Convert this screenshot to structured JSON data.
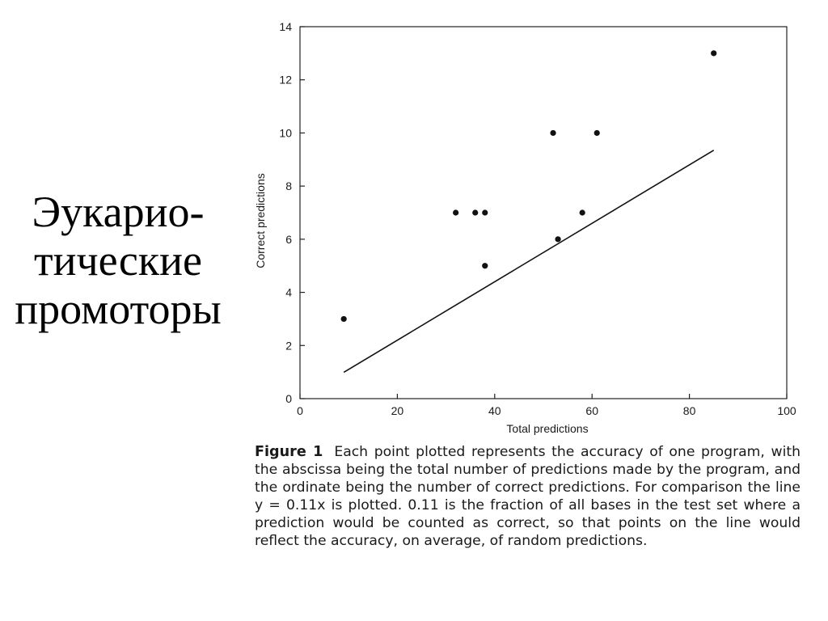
{
  "slide": {
    "title_lines": [
      "Эукарио-",
      "тические",
      "промоторы"
    ]
  },
  "figure": {
    "caption_label": "Figure 1",
    "caption_text": "Each point plotted represents the accuracy of one program, with the abscissa being the total number of predictions made by the program, and the ordinate being the number of correct predictions. For comparison the line y = 0.11x is plotted. 0.11 is the fraction of all bases in the test set where a prediction would be counted as correct, so that points on the line would reflect the accuracy, on average, of random predictions."
  },
  "chart_data": {
    "type": "scatter",
    "title": "",
    "xlabel": "Total predictions",
    "ylabel": "Correct predictions",
    "xlim": [
      0,
      100
    ],
    "ylim": [
      0,
      14
    ],
    "xticks": [
      0,
      20,
      40,
      60,
      80,
      100
    ],
    "yticks": [
      0,
      2,
      4,
      6,
      8,
      10,
      12,
      14
    ],
    "grid": false,
    "points": [
      {
        "x": 9,
        "y": 3
      },
      {
        "x": 32,
        "y": 7
      },
      {
        "x": 36,
        "y": 7
      },
      {
        "x": 38,
        "y": 7
      },
      {
        "x": 38,
        "y": 5
      },
      {
        "x": 52,
        "y": 10
      },
      {
        "x": 53,
        "y": 6
      },
      {
        "x": 58,
        "y": 7
      },
      {
        "x": 61,
        "y": 10
      },
      {
        "x": 85,
        "y": 13
      }
    ],
    "reference_line": {
      "slope": 0.11,
      "x_range": [
        9,
        85
      ]
    },
    "colors": {
      "marks": "#111111",
      "axes": "#222222"
    }
  }
}
